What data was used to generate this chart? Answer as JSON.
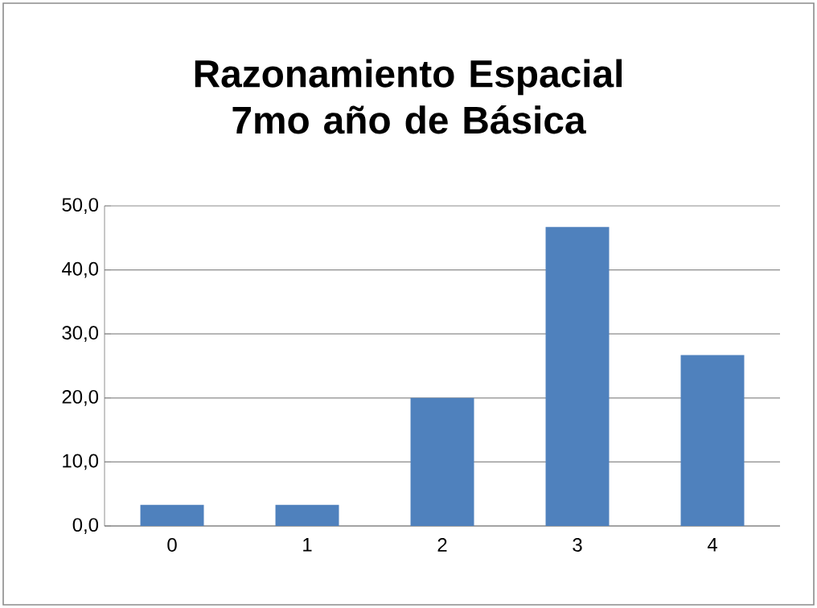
{
  "chart_data": {
    "type": "bar",
    "title": "Razonamiento Espacial 7mo año de Básica",
    "categories": [
      "0",
      "1",
      "2",
      "3",
      "4"
    ],
    "values": [
      3.3,
      3.3,
      20.0,
      46.7,
      26.7
    ],
    "color": "#4f81bd",
    "ylim": [
      0,
      50
    ],
    "yticks": [
      {
        "value": 0,
        "label": "0,0"
      },
      {
        "value": 10,
        "label": "10,0"
      },
      {
        "value": 20,
        "label": "20,0"
      },
      {
        "value": 30,
        "label": "30,0"
      },
      {
        "value": 40,
        "label": "40,0"
      },
      {
        "value": 50,
        "label": "50,0"
      }
    ],
    "grid": "y"
  }
}
